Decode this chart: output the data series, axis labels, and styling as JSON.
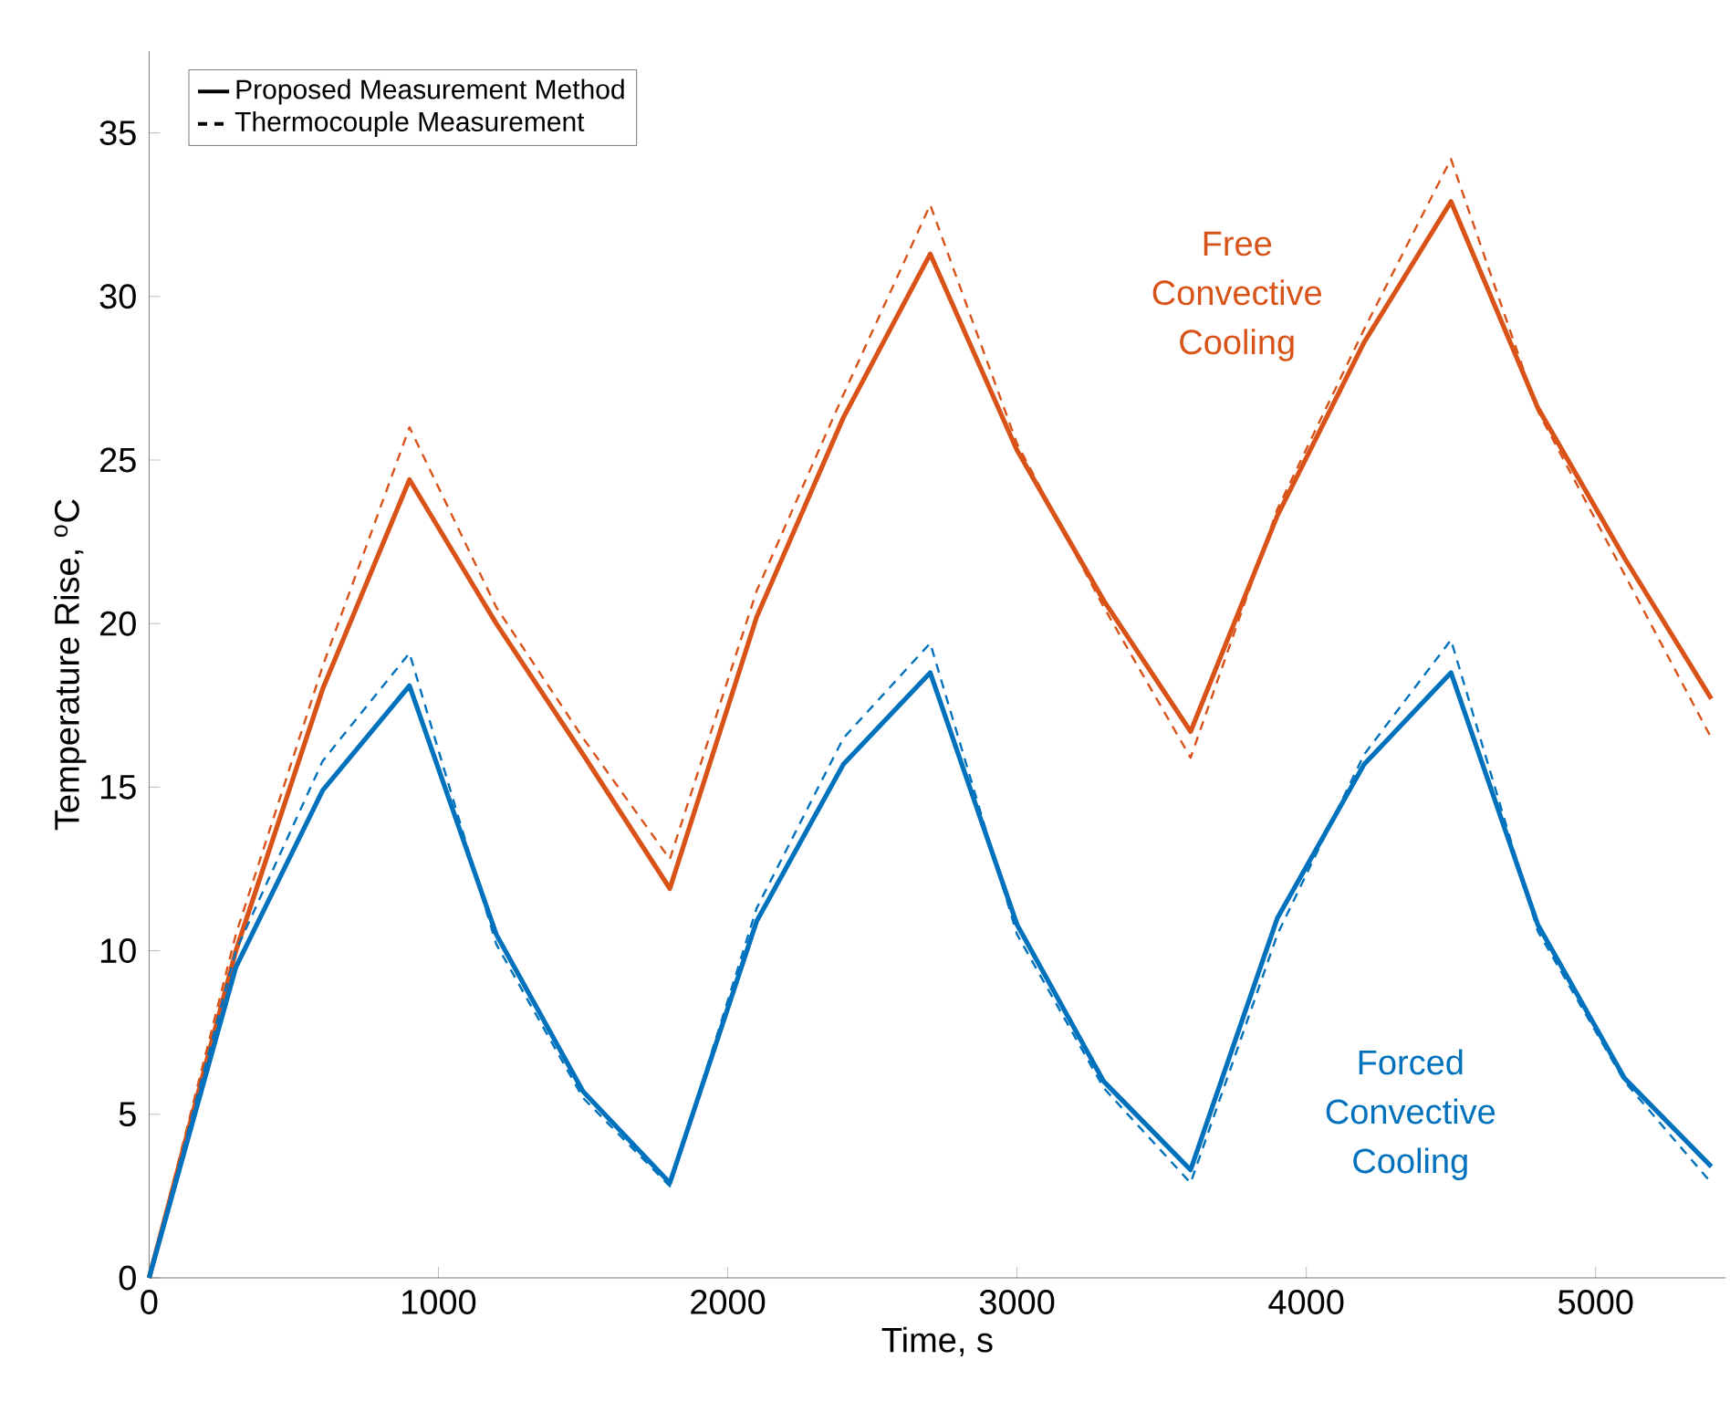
{
  "chart_data": {
    "type": "line",
    "xlabel": "Time, s",
    "ylabel": "Temperature Rise, $^{o}$C",
    "x": [
      0,
      300,
      600,
      900,
      1200,
      1500,
      1800,
      2100,
      2400,
      2700,
      3000,
      3300,
      3600,
      3900,
      4200,
      4500,
      4800,
      5100,
      5400
    ],
    "series": [
      {
        "color": "#d95319",
        "line_style": "solid",
        "values": [
          0,
          10.0,
          18.0,
          24.4,
          20.0,
          16.0,
          11.9,
          20.2,
          26.3,
          31.3,
          25.3,
          20.7,
          16.7,
          23.3,
          28.6,
          32.9,
          26.6,
          22.0,
          17.7
        ]
      },
      {
        "color": "#d95319",
        "line_style": "dashed",
        "values": [
          0,
          10.5,
          18.7,
          26.0,
          20.5,
          16.5,
          12.8,
          21.0,
          27.0,
          32.8,
          25.5,
          20.5,
          15.9,
          23.5,
          29.0,
          34.2,
          26.5,
          21.5,
          16.5
        ]
      },
      {
        "color": "#0072bd",
        "line_style": "solid",
        "values": [
          0,
          9.5,
          14.9,
          18.1,
          10.5,
          5.7,
          2.9,
          10.9,
          15.7,
          18.5,
          10.8,
          6.0,
          3.3,
          11.0,
          15.7,
          18.5,
          10.8,
          6.1,
          3.4
        ]
      },
      {
        "color": "#0072bd",
        "line_style": "dashed",
        "values": [
          0,
          10.0,
          15.8,
          19.1,
          10.2,
          5.5,
          2.8,
          11.3,
          16.5,
          19.4,
          10.5,
          5.8,
          2.9,
          10.5,
          16.0,
          19.5,
          10.6,
          6.0,
          2.9
        ]
      },
      {
        "name": "Proposed Measurement Method",
        "color": "#000000",
        "line_style": "solid",
        "values": [
          null,
          null,
          null,
          null,
          null,
          null,
          null,
          null,
          null,
          null,
          null,
          null,
          null,
          null,
          null,
          null,
          null,
          null,
          null
        ]
      },
      {
        "name": "Thermocouple Measurement",
        "color": "#000000",
        "line_style": "dashed",
        "values": [
          null,
          null,
          null,
          null,
          null,
          null,
          null,
          null,
          null,
          null,
          null,
          null,
          null,
          null,
          null,
          null,
          null,
          null,
          null
        ]
      }
    ],
    "xlim": [
      0,
      5450
    ],
    "ylim": [
      0,
      37.5
    ],
    "xticks": [
      0,
      1000,
      2000,
      3000,
      4000,
      5000
    ],
    "yticks": [
      0,
      5,
      10,
      15,
      20,
      25,
      30,
      35
    ],
    "legend": "top left",
    "grid": false,
    "annotations": [
      "Free Convective Cooling",
      "Forced Convective Cooling"
    ]
  }
}
